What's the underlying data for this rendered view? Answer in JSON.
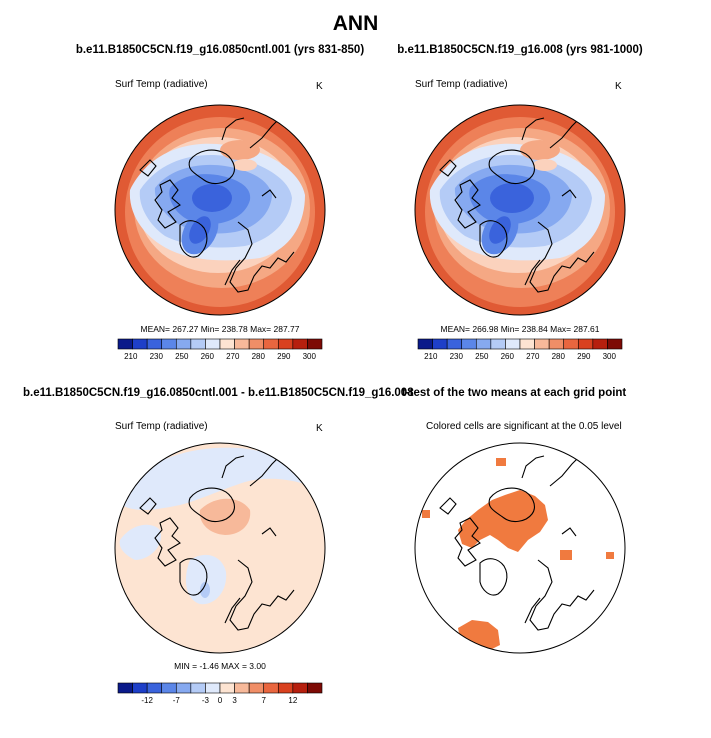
{
  "page_title": "ANN",
  "chart_data": [
    {
      "type": "heatmap",
      "projection": "north polar stereographic",
      "title": "b.e11.B1850C5CN.f19_g16.0850cntl.001 (yrs 831-850)",
      "left_label": "Surf Temp (radiative)",
      "units": "K",
      "stats_text": "MEAN= 267.27  Min= 238.78  Max= 287.77",
      "mean": 267.27,
      "min": 238.78,
      "max": 287.77,
      "colorbar_ticks": [
        "210",
        "230",
        "250",
        "260",
        "270",
        "280",
        "290",
        "300"
      ]
    },
    {
      "type": "heatmap",
      "projection": "north polar stereographic",
      "title": "b.e11.B1850C5CN.f19_g16.008 (yrs 981-1000)",
      "left_label": "Surf Temp (radiative)",
      "units": "K",
      "stats_text": "MEAN= 266.98  Min= 238.84  Max= 287.61",
      "mean": 266.98,
      "min": 238.84,
      "max": 287.61,
      "colorbar_ticks": [
        "210",
        "230",
        "250",
        "260",
        "270",
        "280",
        "290",
        "300"
      ]
    },
    {
      "type": "heatmap",
      "projection": "north polar stereographic",
      "title": "b.e11.B1850C5CN.f19_g16.0850cntl.001 - b.e11.B1850C5CN.f19_g16.008",
      "left_label": "Surf Temp (radiative)",
      "units": "K",
      "stats_text": "MIN = -1.46  MAX =  3.00",
      "min": -1.46,
      "max": 3.0,
      "colorbar_ticks": [
        "-12",
        "-7",
        "-3",
        "0",
        "3",
        "7",
        "12"
      ]
    },
    {
      "type": "heatmap",
      "projection": "north polar stereographic",
      "title": "t-test of the two means at each grid point",
      "subtitle": "Colored cells are significant at the 0.05 level"
    }
  ],
  "colors": {
    "abs_scale": [
      "#0a1a8a",
      "#1e3fc8",
      "#3a63dc",
      "#5b86e8",
      "#86a9f0",
      "#b4cbf6",
      "#dfe9fb",
      "#fde4d2",
      "#f7b99a",
      "#f08e67",
      "#e9663f",
      "#d9411f",
      "#b61f0e",
      "#7d0a05"
    ],
    "diff_scale": [
      "#0a1a8a",
      "#1e3fc8",
      "#3a63dc",
      "#5b86e8",
      "#86a9f0",
      "#b4cbf6",
      "#dfe9fb",
      "#fde4d2",
      "#f7b99a",
      "#f08e67",
      "#e9663f",
      "#d9411f",
      "#b61f0e",
      "#7d0a05"
    ],
    "significant": "#f07a3f"
  }
}
